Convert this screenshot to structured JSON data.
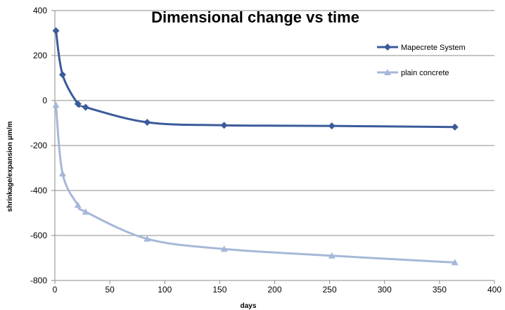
{
  "chart_data": {
    "type": "line",
    "title": "Dimensional change vs time",
    "xlabel": "days",
    "ylabel": "shrinkage/expansion μm/m",
    "xlim": [
      0,
      400
    ],
    "ylim": [
      -800,
      400
    ],
    "xticks": [
      "0",
      "50",
      "100",
      "150",
      "200",
      "250",
      "300",
      "350",
      "400"
    ],
    "yticks": [
      "400",
      "200",
      "0",
      "-200",
      "-400",
      "-600",
      "-800"
    ],
    "grid": "horizontal",
    "legend_position": "right",
    "series": [
      {
        "name": "Mapecrete System",
        "color": "#3b5b9a",
        "marker": "diamond",
        "x": [
          1,
          7,
          21,
          28,
          84,
          154,
          252,
          364
        ],
        "y": [
          310,
          115,
          -15,
          -30,
          -97,
          -110,
          -113,
          -118
        ]
      },
      {
        "name": "plain concrete",
        "color": "#a6b8d9",
        "marker": "triangle",
        "x": [
          1,
          7,
          21,
          28,
          84,
          154,
          252,
          364
        ],
        "y": [
          -20,
          -325,
          -465,
          -495,
          -615,
          -660,
          -690,
          -720
        ]
      }
    ]
  }
}
